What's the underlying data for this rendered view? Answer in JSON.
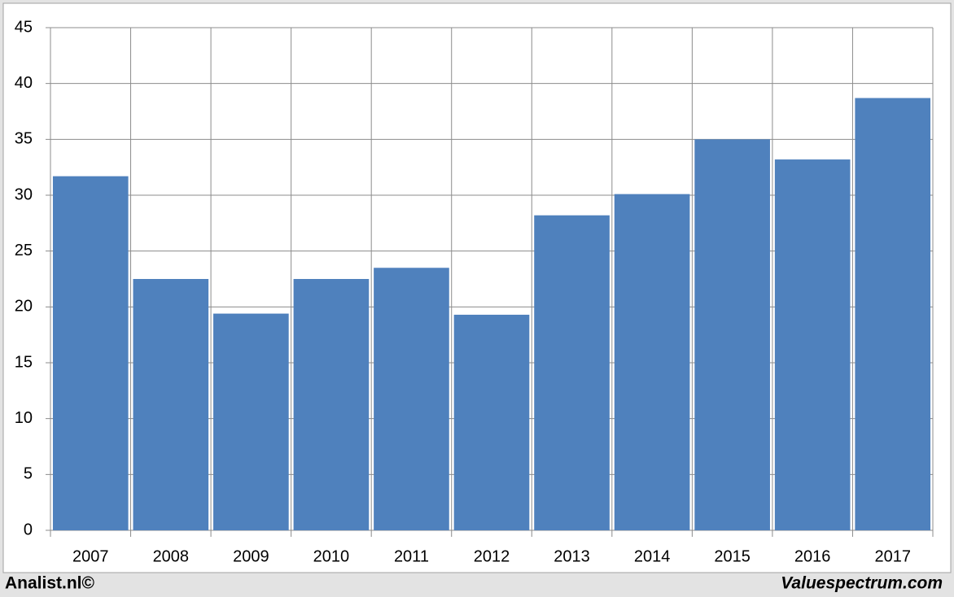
{
  "chart_data": {
    "type": "bar",
    "categories": [
      "2007",
      "2008",
      "2009",
      "2010",
      "2011",
      "2012",
      "2013",
      "2014",
      "2015",
      "2016",
      "2017"
    ],
    "values": [
      31.7,
      22.5,
      19.4,
      22.5,
      23.5,
      19.3,
      28.2,
      30.1,
      35.0,
      33.2,
      38.7
    ],
    "color": "#4f81bd",
    "ylim": [
      0,
      45
    ],
    "yticks": [
      0,
      5,
      10,
      15,
      20,
      25,
      30,
      35,
      40,
      45
    ],
    "grid": true
  },
  "footer": {
    "left": "Analist.nl©",
    "right": "Valuespectrum.com"
  }
}
